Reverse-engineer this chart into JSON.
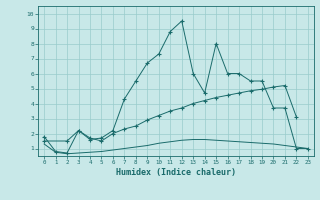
{
  "xlabel": "Humidex (Indice chaleur)",
  "xlim": [
    -0.5,
    23.5
  ],
  "ylim": [
    0.5,
    10.5
  ],
  "xticks": [
    0,
    1,
    2,
    3,
    4,
    5,
    6,
    7,
    8,
    9,
    10,
    11,
    12,
    13,
    14,
    15,
    16,
    17,
    18,
    19,
    20,
    21,
    22,
    23
  ],
  "yticks": [
    1,
    2,
    3,
    4,
    5,
    6,
    7,
    8,
    9,
    10
  ],
  "bg_color": "#c8e8e8",
  "grid_color": "#99cccc",
  "line_color": "#1a6b6b",
  "line1_x": [
    0,
    1,
    2,
    3,
    4,
    5,
    6,
    7,
    8,
    9,
    10,
    11,
    12,
    13,
    14,
    15,
    16,
    17,
    18,
    19,
    20,
    21,
    22,
    23
  ],
  "line1_y": [
    1.8,
    0.8,
    0.7,
    2.2,
    1.6,
    1.7,
    2.2,
    4.3,
    5.5,
    6.7,
    7.3,
    8.8,
    9.5,
    6.0,
    4.7,
    8.0,
    6.0,
    6.0,
    5.5,
    5.5,
    3.7,
    3.7,
    1.0,
    1.0
  ],
  "line2_x": [
    0,
    2,
    3,
    4,
    5,
    6,
    7,
    8,
    9,
    10,
    11,
    12,
    13,
    14,
    15,
    16,
    17,
    18,
    19,
    20,
    21,
    22
  ],
  "line2_y": [
    1.5,
    1.5,
    2.2,
    1.7,
    1.5,
    2.0,
    2.3,
    2.5,
    2.9,
    3.2,
    3.5,
    3.7,
    4.0,
    4.2,
    4.4,
    4.55,
    4.7,
    4.85,
    4.95,
    5.1,
    5.2,
    3.1
  ],
  "line3_x": [
    0,
    1,
    2,
    3,
    4,
    5,
    6,
    7,
    8,
    9,
    10,
    11,
    12,
    13,
    14,
    15,
    16,
    17,
    18,
    19,
    20,
    21,
    22,
    23
  ],
  "line3_y": [
    1.3,
    0.75,
    0.65,
    0.7,
    0.75,
    0.8,
    0.9,
    1.0,
    1.1,
    1.2,
    1.35,
    1.45,
    1.55,
    1.6,
    1.6,
    1.55,
    1.5,
    1.45,
    1.4,
    1.35,
    1.3,
    1.2,
    1.1,
    1.0
  ]
}
